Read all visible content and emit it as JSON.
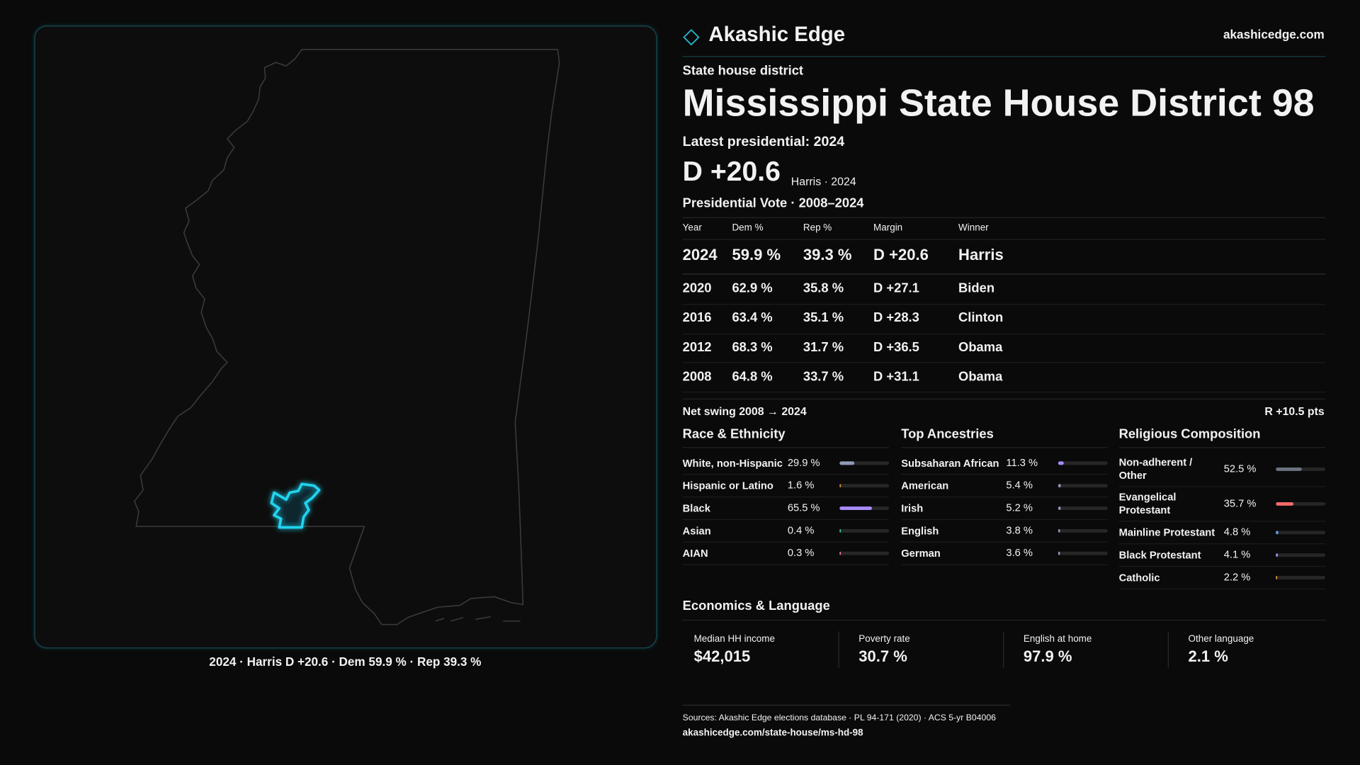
{
  "header": {
    "brand": "Akashic Edge",
    "site": "akashicedge.com"
  },
  "map": {
    "caption": "2024 · Harris D +20.6 · Dem 59.9 % · Rep 39.3 %"
  },
  "district": {
    "kind": "State house district",
    "title": "Mississippi State House District 98",
    "latest": "Latest presidential: 2024",
    "margin": "D +20.6",
    "margin_note": "Harris · 2024"
  },
  "presidential": {
    "title": "Presidential Vote · 2008–2024",
    "columns": [
      "Year",
      "Dem %",
      "Rep %",
      "Margin",
      "Winner"
    ],
    "rows": [
      [
        "2024",
        "59.9 %",
        "39.3 %",
        "D +20.6",
        "Harris"
      ],
      [
        "2020",
        "62.9 %",
        "35.8 %",
        "D +27.1",
        "Biden"
      ],
      [
        "2016",
        "63.4 %",
        "35.1 %",
        "D +28.3",
        "Clinton"
      ],
      [
        "2012",
        "68.3 %",
        "31.7 %",
        "D +36.5",
        "Obama"
      ],
      [
        "2008",
        "64.8 %",
        "33.7 %",
        "D +31.1",
        "Obama"
      ]
    ],
    "swing_label": "Net swing 2008 → 2024",
    "swing": "R +10.5 pts"
  },
  "race": {
    "title": "Race & Ethnicity",
    "rows": [
      {
        "label": "White, non-Hispanic",
        "value": 29.9,
        "value_label": "29.9 %",
        "color": "#8f9bb3"
      },
      {
        "label": "Hispanic or Latino",
        "value": 1.6,
        "value_label": "1.6 %",
        "color": "#e0902a"
      },
      {
        "label": "Black",
        "value": 65.5,
        "value_label": "65.5 %",
        "color": "#a78bfa"
      },
      {
        "label": "Asian",
        "value": 0.4,
        "value_label": "0.4 %",
        "color": "#34d399"
      },
      {
        "label": "AIAN",
        "value": 0.3,
        "value_label": "0.3 %",
        "color": "#f472b6"
      }
    ]
  },
  "ancestry": {
    "title": "Top Ancestries",
    "rows": [
      {
        "label": "Subsaharan African",
        "value": 11.3,
        "value_label": "11.3 %",
        "color": "#a78bfa"
      },
      {
        "label": "American",
        "value": 5.4,
        "value_label": "5.4 %",
        "color": "#8f9bb3"
      },
      {
        "label": "Irish",
        "value": 5.2,
        "value_label": "5.2 %",
        "color": "#8f9bb3"
      },
      {
        "label": "English",
        "value": 3.8,
        "value_label": "3.8 %",
        "color": "#8f9bb3"
      },
      {
        "label": "German",
        "value": 3.6,
        "value_label": "3.6 %",
        "color": "#8f9bb3"
      }
    ]
  },
  "religion": {
    "title": "Religious Composition",
    "rows": [
      {
        "label": "Non-adherent / Other",
        "value": 52.5,
        "value_label": "52.5 %",
        "color": "#6b7280"
      },
      {
        "label": "Evangelical Protestant",
        "value": 35.7,
        "value_label": "35.7 %",
        "color": "#f06b6b"
      },
      {
        "label": "Mainline Protestant",
        "value": 4.8,
        "value_label": "4.8 %",
        "color": "#60a5fa"
      },
      {
        "label": "Black Protestant",
        "value": 4.1,
        "value_label": "4.1 %",
        "color": "#a78bfa"
      },
      {
        "label": "Catholic",
        "value": 2.2,
        "value_label": "2.2 %",
        "color": "#e0a030"
      }
    ]
  },
  "economics": {
    "title": "Economics & Language",
    "items": [
      {
        "label": "Median HH income",
        "value": "$42,015"
      },
      {
        "label": "Poverty rate",
        "value": "30.7 %"
      },
      {
        "label": "English at home",
        "value": "97.9 %"
      },
      {
        "label": "Other language",
        "value": "2.1 %"
      }
    ]
  },
  "footer": {
    "sources": "Sources: Akashic Edge elections database · PL 94-171 (2020) · ACS 5-yr B04006",
    "url": "akashicedge.com/state-house/ms-hd-98"
  }
}
